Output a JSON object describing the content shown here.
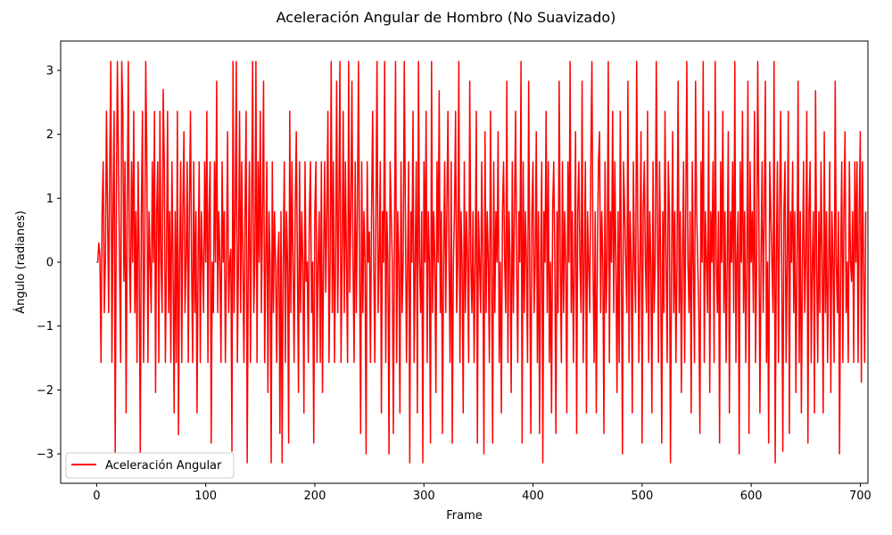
{
  "chart_data": {
    "type": "line",
    "title": "Aceleración Angular de Hombro (No Suavizado)",
    "xlabel": "Frame",
    "ylabel": "Ángulo (radianes)",
    "xlim": [
      -33,
      707
    ],
    "ylim": [
      -3.46,
      3.46
    ],
    "xticks": [
      0,
      100,
      200,
      300,
      400,
      500,
      600,
      700
    ],
    "yticks": [
      -3,
      -2,
      -1,
      0,
      1,
      2,
      3
    ],
    "grid": false,
    "legend_position": "lower left",
    "colors": {
      "series": "#ff0000",
      "axes": "#000000",
      "background": "#ffffff"
    },
    "series": [
      {
        "name": "Aceleración Angular",
        "x_start": 0,
        "x_step": 1,
        "values": [
          0.0,
          0.0,
          0.3,
          0.1,
          -1.57,
          0.79,
          1.57,
          -0.79,
          0.0,
          2.36,
          0.79,
          -0.79,
          1.57,
          3.14,
          -1.57,
          0.79,
          2.36,
          -3.0,
          0.79,
          3.14,
          1.57,
          0.0,
          -1.57,
          3.14,
          2.36,
          -0.3,
          1.57,
          -2.36,
          0.79,
          3.14,
          0.0,
          -0.79,
          1.57,
          0.0,
          2.36,
          -0.79,
          0.79,
          -1.57,
          1.57,
          0.0,
          -3.0,
          0.79,
          2.36,
          -1.57,
          0.0,
          3.14,
          1.57,
          -1.57,
          0.79,
          0.0,
          -0.79,
          1.57,
          0.0,
          2.36,
          -2.04,
          0.79,
          1.57,
          -1.57,
          2.36,
          0.0,
          -0.79,
          2.7,
          1.57,
          -1.57,
          0.0,
          2.36,
          -0.79,
          0.79,
          -1.57,
          1.57,
          0.0,
          -2.36,
          0.79,
          -1.57,
          2.36,
          -2.7,
          0.0,
          1.57,
          -1.57,
          0.79,
          2.04,
          -0.79,
          0.0,
          1.57,
          -1.57,
          0.79,
          2.36,
          0.0,
          -1.57,
          1.57,
          -0.79,
          0.79,
          -2.36,
          0.0,
          1.57,
          -1.57,
          0.79,
          0.0,
          -0.79,
          1.57,
          0.0,
          2.36,
          -1.57,
          0.79,
          1.57,
          -2.83,
          0.0,
          -0.79,
          1.57,
          0.0,
          2.83,
          -0.79,
          0.79,
          0.0,
          -1.57,
          1.57,
          0.0,
          0.79,
          -1.57,
          0.0,
          2.04,
          -0.79,
          0.0,
          0.2,
          -2.96,
          3.14,
          -0.79,
          0.79,
          3.14,
          -1.57,
          0.0,
          2.36,
          -0.79,
          1.57,
          0.0,
          -1.57,
          0.79,
          2.36,
          -3.14,
          0.0,
          1.57,
          -1.57,
          0.79,
          3.14,
          -0.79,
          0.0,
          3.14,
          -1.57,
          1.57,
          0.0,
          2.36,
          -0.79,
          0.79,
          2.83,
          -1.57,
          0.0,
          1.57,
          -2.04,
          0.79,
          0.0,
          -3.14,
          1.57,
          -0.79,
          0.79,
          0.0,
          -1.57,
          0.0,
          0.47,
          -2.68,
          0.79,
          -3.14,
          0.0,
          1.57,
          -1.57,
          0.79,
          0.0,
          -2.83,
          2.36,
          -0.79,
          1.57,
          0.0,
          -1.57,
          0.79,
          2.04,
          0.0,
          -2.04,
          1.57,
          -0.79,
          0.79,
          0.0,
          -2.36,
          1.57,
          -0.3,
          0.0,
          -1.57,
          0.79,
          1.57,
          -0.79,
          0.0,
          -2.83,
          0.79,
          1.57,
          -1.57,
          0.0,
          0.79,
          -1.57,
          1.57,
          -2.04,
          0.0,
          1.57,
          -0.47,
          0.79,
          2.36,
          -1.57,
          0.0,
          3.14,
          -0.79,
          1.57,
          -1.57,
          0.0,
          2.83,
          -0.79,
          0.79,
          3.14,
          -1.57,
          0.0,
          2.36,
          -0.79,
          1.57,
          0.0,
          -1.57,
          3.14,
          -0.47,
          0.79,
          2.83,
          0.0,
          -1.57,
          1.57,
          -0.79,
          0.79,
          3.14,
          0.0,
          -2.68,
          1.57,
          -0.79,
          0.79,
          0.0,
          -3.0,
          1.57,
          0.0,
          0.47,
          -1.57,
          0.79,
          2.36,
          0.0,
          -1.57,
          0.79,
          3.14,
          -0.79,
          0.0,
          1.57,
          -2.36,
          0.79,
          0.0,
          3.14,
          -1.57,
          0.79,
          0.0,
          -3.0,
          1.57,
          0.79,
          0.0,
          -2.68,
          0.47,
          3.14,
          -1.57,
          0.79,
          0.0,
          -2.36,
          1.57,
          -0.79,
          0.0,
          3.14,
          0.79,
          -1.57,
          0.0,
          1.57,
          -3.14,
          0.79,
          0.0,
          2.36,
          -1.57,
          0.0,
          1.57,
          -2.36,
          3.14,
          0.0,
          -0.79,
          0.79,
          -3.14,
          1.57,
          0.0,
          2.36,
          -1.57,
          0.79,
          0.0,
          -2.83,
          3.14,
          -0.79,
          0.79,
          0.0,
          -2.04,
          1.57,
          0.0,
          2.68,
          -0.79,
          0.79,
          -2.68,
          0.0,
          1.57,
          -0.79,
          0.79,
          2.36,
          0.0,
          -1.57,
          1.57,
          -2.83,
          0.0,
          0.79,
          2.36,
          -0.79,
          0.0,
          3.14,
          -1.57,
          0.79,
          0.0,
          -2.36,
          1.57,
          -0.79,
          0.79,
          0.0,
          -1.57,
          2.83,
          0.0,
          -0.79,
          0.79,
          -1.57,
          0.0,
          2.36,
          -2.83,
          0.79,
          0.0,
          -0.79,
          1.57,
          0.0,
          -3.0,
          2.04,
          -0.79,
          0.79,
          0.0,
          -1.57,
          2.36,
          0.0,
          -2.83,
          1.57,
          -0.79,
          0.79,
          0.0,
          2.04,
          -1.57,
          0.0,
          -2.36,
          0.79,
          1.57,
          0.0,
          -0.79,
          2.83,
          -1.57,
          0.79,
          0.0,
          -2.04,
          1.57,
          -0.79,
          0.79,
          2.36,
          0.0,
          -1.57,
          0.79,
          0.0,
          3.14,
          -2.83,
          1.57,
          -0.79,
          0.79,
          0.0,
          -1.57,
          2.83,
          0.0,
          -2.68,
          0.79,
          1.57,
          -0.79,
          0.0,
          2.04,
          -1.57,
          0.79,
          -2.68,
          0.0,
          1.57,
          -3.14,
          0.79,
          0.0,
          2.36,
          -0.79,
          1.57,
          -1.57,
          0.0,
          -2.36,
          0.79,
          1.57,
          0.0,
          -2.68,
          0.79,
          -0.79,
          2.83,
          0.0,
          -1.57,
          1.57,
          -0.79,
          0.79,
          0.0,
          -2.36,
          1.57,
          0.0,
          3.14,
          -0.79,
          0.79,
          -1.57,
          0.0,
          2.04,
          -2.68,
          0.79,
          1.57,
          0.0,
          -0.79,
          2.83,
          -1.57,
          0.0,
          1.57,
          -2.36,
          0.79,
          0.0,
          -0.79,
          1.57,
          3.14,
          0.0,
          -1.57,
          0.79,
          -2.36,
          0.0,
          1.57,
          2.04,
          -0.79,
          0.79,
          0.0,
          -2.68,
          1.57,
          -0.79,
          0.0,
          3.14,
          -1.57,
          0.79,
          0.0,
          2.36,
          -0.79,
          1.57,
          0.0,
          -2.04,
          0.79,
          -1.57,
          2.36,
          0.0,
          -3.0,
          1.57,
          0.79,
          0.0,
          -0.79,
          2.83,
          -1.57,
          0.79,
          0.0,
          -2.36,
          1.57,
          0.0,
          -0.79,
          3.14,
          0.79,
          -1.57,
          0.0,
          2.04,
          -2.83,
          0.79,
          1.57,
          0.0,
          -0.79,
          2.36,
          -1.57,
          0.79,
          0.0,
          -2.36,
          1.57,
          -0.79,
          0.0,
          3.14,
          0.79,
          -1.57,
          1.57,
          0.0,
          -2.83,
          0.79,
          -0.79,
          2.36,
          0.0,
          -1.57,
          1.57,
          0.79,
          -3.14,
          0.0,
          2.04,
          -0.79,
          0.79,
          -1.57,
          0.0,
          2.83,
          -0.79,
          0.79,
          -2.04,
          0.0,
          1.57,
          -1.57,
          0.79,
          3.14,
          0.0,
          -0.79,
          0.79,
          -2.36,
          1.57,
          0.0,
          -1.57,
          2.83,
          0.79,
          0.0,
          -0.79,
          -2.68,
          1.57,
          0.0,
          3.14,
          -1.57,
          0.79,
          0.0,
          -0.79,
          2.36,
          -2.04,
          0.79,
          0.0,
          1.57,
          -1.57,
          3.14,
          0.0,
          -0.79,
          0.79,
          -2.83,
          1.57,
          0.0,
          2.36,
          -0.79,
          0.79,
          -1.57,
          0.0,
          2.04,
          -2.36,
          0.79,
          0.0,
          1.57,
          -0.79,
          3.14,
          -1.57,
          0.0,
          0.79,
          -3.0,
          1.57,
          0.0,
          2.36,
          -0.79,
          0.79,
          -1.57,
          0.0,
          2.83,
          -2.68,
          1.57,
          0.0,
          0.79,
          -0.79,
          2.36,
          -1.57,
          0.0,
          3.14,
          0.79,
          -2.36,
          0.0,
          1.57,
          -0.79,
          0.79,
          2.83,
          -1.57,
          0.0,
          -2.83,
          1.57,
          0.79,
          0.0,
          -0.79,
          3.14,
          -3.14,
          0.0,
          1.57,
          -1.57,
          0.79,
          2.36,
          0.0,
          -2.96,
          0.79,
          1.57,
          -1.57,
          0.0,
          2.36,
          -2.68,
          0.79,
          0.0,
          1.57,
          -0.79,
          0.79,
          -2.04,
          0.0,
          2.83,
          -1.57,
          0.79,
          -2.36,
          0.0,
          1.57,
          -0.79,
          0.0,
          2.36,
          -2.83,
          0.79,
          1.57,
          -1.57,
          0.0,
          0.79,
          -2.36,
          2.68,
          0.0,
          -1.57,
          0.79,
          -0.79,
          1.57,
          0.0,
          -2.36,
          2.04,
          -0.79,
          0.79,
          -1.57,
          0.0,
          1.57,
          -2.04,
          0.79,
          0.0,
          -1.57,
          2.83,
          0.0,
          -0.79,
          0.79,
          -3.0,
          0.0,
          1.57,
          -1.57,
          0.79,
          2.04,
          -0.79,
          0.0,
          -1.57,
          1.57,
          0.0,
          -0.3,
          0.79,
          -1.57,
          1.57,
          0.0,
          1.57,
          -1.57,
          0.79,
          2.04,
          -1.88,
          1.57,
          0.0,
          -1.57,
          0.79
        ]
      }
    ]
  }
}
